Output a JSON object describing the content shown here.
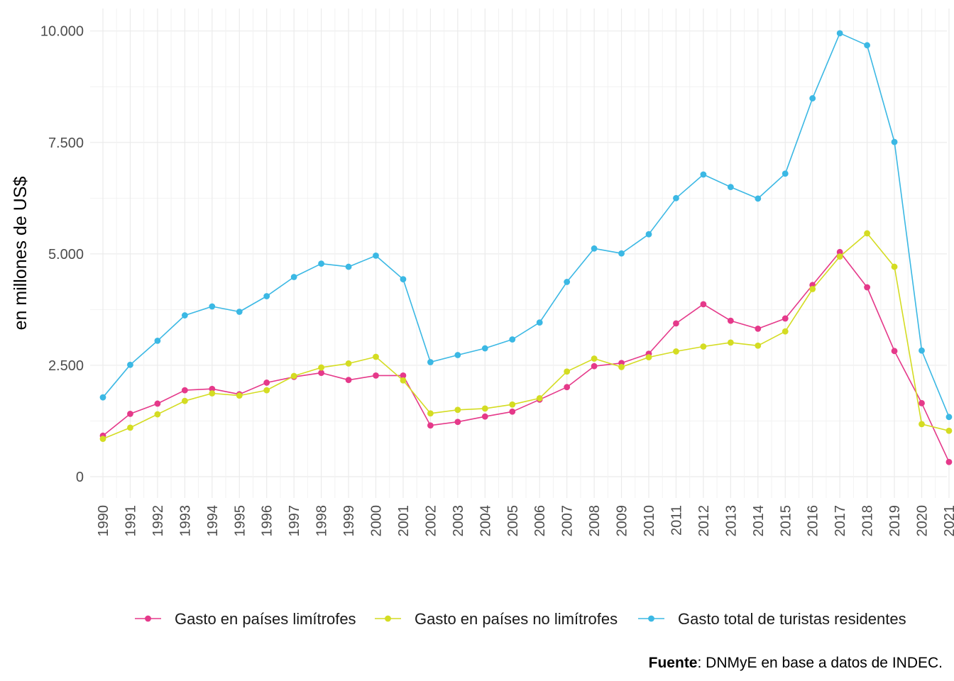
{
  "chart_data": {
    "type": "line",
    "x": [
      1990,
      1991,
      1992,
      1993,
      1994,
      1995,
      1996,
      1997,
      1998,
      1999,
      2000,
      2001,
      2002,
      2003,
      2004,
      2005,
      2006,
      2007,
      2008,
      2009,
      2010,
      2011,
      2012,
      2013,
      2014,
      2015,
      2016,
      2017,
      2018,
      2019,
      2020,
      2021
    ],
    "x_tick_labels": [
      "1990",
      "1991",
      "1992",
      "1993",
      "1994",
      "1995",
      "1996",
      "1997",
      "1998",
      "1999",
      "2000",
      "2001",
      "2002",
      "2003",
      "2004",
      "2005",
      "2006",
      "2007",
      "2008",
      "2009",
      "2010",
      "2011",
      "2012",
      "2013",
      "2014",
      "2015",
      "2016",
      "2017",
      "2018",
      "2019",
      "2020",
      "2021"
    ],
    "ylabel": "en millones de US$",
    "xlabel": "",
    "ylim": [
      0,
      10000
    ],
    "y_ticks": [
      0,
      2500,
      5000,
      7500,
      10000
    ],
    "y_tick_labels": [
      "0",
      "2.500",
      "5.000",
      "7.500",
      "10.000"
    ],
    "grid": true,
    "legend_position": "bottom",
    "series": [
      {
        "name": "Gasto en países limítrofes",
        "color": "#e5398a",
        "values": [
          920,
          1410,
          1640,
          1940,
          1970,
          1850,
          2110,
          2240,
          2330,
          2170,
          2270,
          2270,
          1150,
          1230,
          1350,
          1460,
          1730,
          2010,
          2480,
          2550,
          2760,
          3440,
          3870,
          3500,
          3320,
          3550,
          4300,
          5040,
          4250,
          2820,
          1650,
          330
        ]
      },
      {
        "name": "Gasto en países no limítrofes",
        "color": "#d4dc22",
        "values": [
          850,
          1100,
          1400,
          1700,
          1870,
          1820,
          1940,
          2260,
          2450,
          2540,
          2690,
          2160,
          1420,
          1500,
          1530,
          1620,
          1760,
          2360,
          2650,
          2460,
          2680,
          2810,
          2920,
          3010,
          2940,
          3260,
          4210,
          4940,
          5460,
          4710,
          1180,
          1030
        ]
      },
      {
        "name": "Gasto total de turistas residentes",
        "color": "#3bb8e4",
        "values": [
          1780,
          2510,
          3050,
          3620,
          3820,
          3700,
          4050,
          4480,
          4780,
          4710,
          4960,
          4430,
          2570,
          2730,
          2880,
          3080,
          3460,
          4370,
          5120,
          5010,
          5440,
          6250,
          6780,
          6500,
          6240,
          6800,
          8490,
          9950,
          9680,
          7510,
          2830,
          1340
        ]
      }
    ]
  },
  "source": {
    "label": "Fuente",
    "text": ": DNMyE en base a datos de INDEC."
  }
}
